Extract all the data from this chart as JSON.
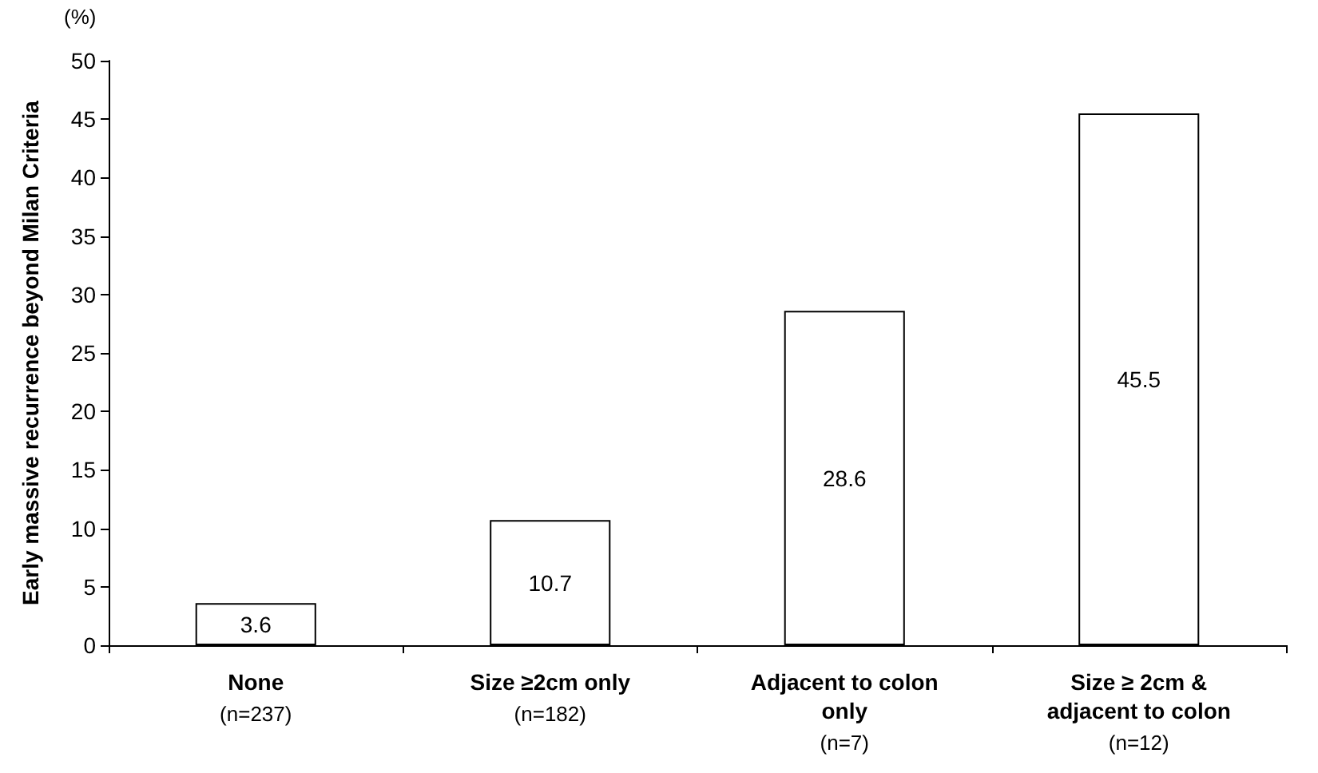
{
  "chart_data": {
    "type": "bar",
    "ylabel": "Early massive recurrence beyond Milan Criteria",
    "annotations": [
      "(%)"
    ],
    "categories": [
      "None\n(n=237)",
      "Size ≥2cm only\n(n=182)",
      "Adjacent to colon\nonly\n(n=7)",
      "Size ≥ 2cm &\nadjacent to colon\n(n=12)"
    ],
    "values": [
      3.6,
      10.7,
      28.6,
      45.5
    ],
    "color": "#ffffff",
    "ylim": [
      0,
      50
    ],
    "yticks": [
      0,
      5,
      10,
      15,
      20,
      25,
      30,
      35,
      40,
      45,
      50
    ],
    "grid": false,
    "data_labels": true
  }
}
